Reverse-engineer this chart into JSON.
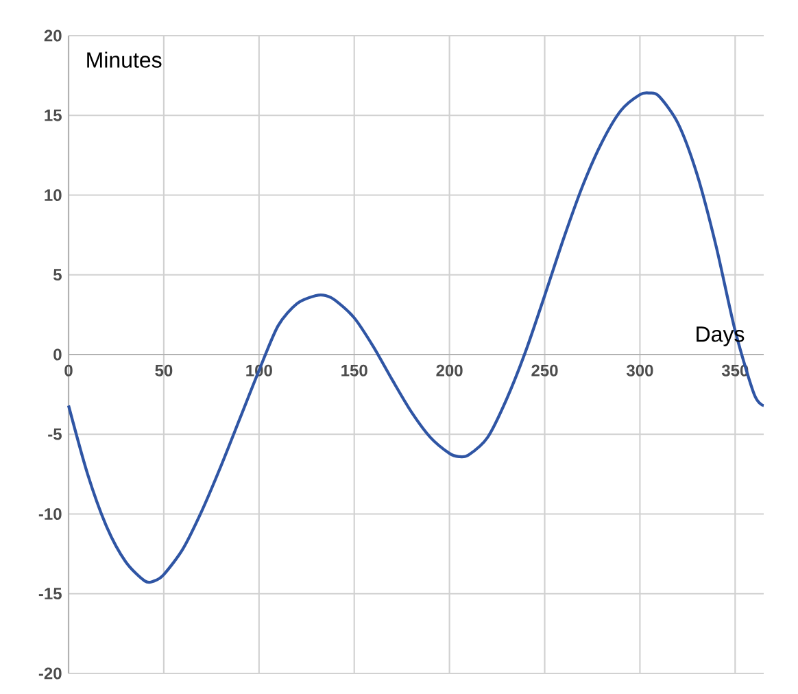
{
  "chart_data": {
    "type": "line",
    "xlabel": "Days",
    "ylabel": "Minutes",
    "x": [
      0,
      10,
      20,
      30,
      40,
      45,
      50,
      60,
      70,
      80,
      90,
      100,
      110,
      120,
      130,
      135,
      140,
      150,
      160,
      170,
      180,
      190,
      200,
      205,
      210,
      220,
      230,
      240,
      250,
      260,
      270,
      280,
      290,
      300,
      305,
      310,
      320,
      330,
      340,
      350,
      360,
      365
    ],
    "series": [
      {
        "color": "#2f55a4",
        "values": [
          -3.2,
          -7.5,
          -10.8,
          -13,
          -14.2,
          -14.2,
          -13.8,
          -12.2,
          -9.8,
          -7,
          -4,
          -1,
          1.8,
          3.2,
          3.7,
          3.7,
          3.4,
          2.3,
          0.5,
          -1.6,
          -3.6,
          -5.2,
          -6.2,
          -6.4,
          -6.3,
          -5.2,
          -2.8,
          0.2,
          3.7,
          7.3,
          10.6,
          13.3,
          15.3,
          16.3,
          16.4,
          16.2,
          14.5,
          11.3,
          6.8,
          1.5,
          -2.5,
          -3.2
        ]
      }
    ],
    "xlim": [
      0,
      365
    ],
    "ylim": [
      -20,
      20
    ],
    "xticks": [
      0,
      50,
      100,
      150,
      200,
      250,
      300,
      350
    ],
    "yticks": [
      -20,
      -15,
      -10,
      -5,
      0,
      5,
      10,
      15,
      20
    ],
    "grid": true
  }
}
